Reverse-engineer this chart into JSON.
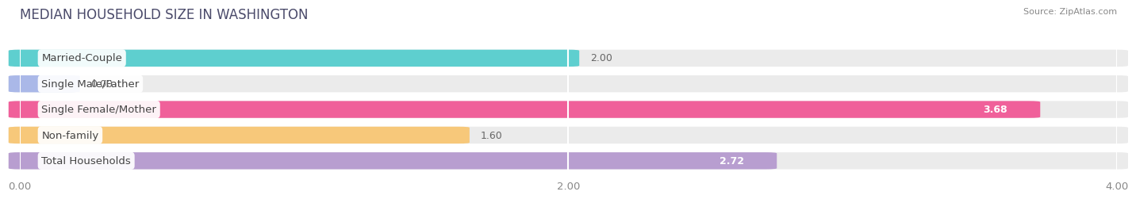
{
  "title": "MEDIAN HOUSEHOLD SIZE IN WASHINGTON",
  "source": "Source: ZipAtlas.com",
  "categories": [
    "Married-Couple",
    "Single Male/Father",
    "Single Female/Mother",
    "Non-family",
    "Total Households"
  ],
  "values": [
    2.0,
    0.0,
    3.68,
    1.6,
    2.72
  ],
  "colors": [
    "#5ecfcf",
    "#aab8e8",
    "#f0609a",
    "#f7c87a",
    "#b89ed0"
  ],
  "xlim": [
    0,
    4.0
  ],
  "xticks": [
    0.0,
    2.0,
    4.0
  ],
  "xtick_labels": [
    "0.00",
    "2.00",
    "4.00"
  ],
  "background_color": "#ffffff",
  "bar_bg_color": "#ebebeb",
  "title_color": "#4a4a6a",
  "label_color": "#444444",
  "value_inside_color": "#ffffff",
  "value_outside_color": "#666666",
  "title_fontsize": 12,
  "label_fontsize": 9.5,
  "value_fontsize": 9,
  "source_fontsize": 8
}
